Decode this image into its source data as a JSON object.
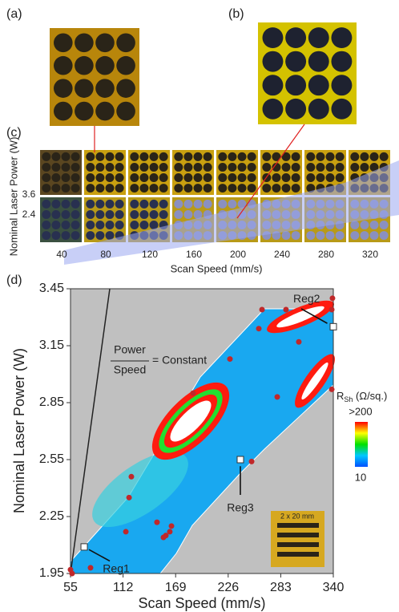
{
  "panel_labels": [
    "(a)",
    "(b)",
    "(c)",
    "(d)"
  ],
  "panel_c": {
    "ylabel": "Nominal Laser Power (W)",
    "xlabel": "Scan Speed (mm/s)",
    "row_labels": [
      "3.6",
      "2.4"
    ],
    "column_labels": [
      "40",
      "80",
      "120",
      "160",
      "200",
      "240",
      "280",
      "320"
    ]
  },
  "chart_data": {
    "type": "scatter",
    "xlabel": "Scan Speed (mm/s)",
    "ylabel": "Nominal Laser Power (W)",
    "xlim": [
      55,
      340
    ],
    "ylim": [
      1.95,
      3.45
    ],
    "xticks": [
      55,
      112,
      169,
      226,
      283,
      340
    ],
    "yticks": [
      1.95,
      2.25,
      2.55,
      2.85,
      3.15,
      3.45
    ],
    "series": [
      {
        "color": "#c0282a",
        "x": [
          55,
          56.7,
          76.7,
          115,
          118.5,
          121,
          148.8,
          155.8,
          158.4,
          162.7,
          164.5,
          187.9,
          227.9,
          251.4,
          259.2,
          262.7,
          279.2,
          288.7,
          302.6,
          338.3,
          339.1,
          338.3
        ],
        "values": [
          1.97,
          1.95,
          1.98,
          2.17,
          2.35,
          2.46,
          2.22,
          2.14,
          2.15,
          2.17,
          2.2,
          2.9,
          3.08,
          2.54,
          3.24,
          3.34,
          2.88,
          3.34,
          3.17,
          3.34,
          3.4,
          2.92
        ]
      },
      {
        "color": "#ffffff",
        "x": [
          69.8,
          340,
          239.2
        ],
        "values": [
          2.09,
          3.25,
          2.55
        ],
        "labels": [
          "Reg1",
          "Reg2",
          "Reg3"
        ]
      }
    ],
    "annotations": {
      "line_numerator": "Power",
      "line_denominator": "Speed",
      "line_rest": "= Constant",
      "inset": "2 x 20 mm"
    },
    "colorbar": {
      "label_main": "R",
      "label_sub": "Sh",
      "label_unit": " (Ω/sq.)",
      "max_label": ">200",
      "min_label": "10",
      "colors": [
        "#ff0000",
        "#ffff00",
        "#00e000",
        "#00c8ff",
        "#0050ff"
      ]
    }
  }
}
